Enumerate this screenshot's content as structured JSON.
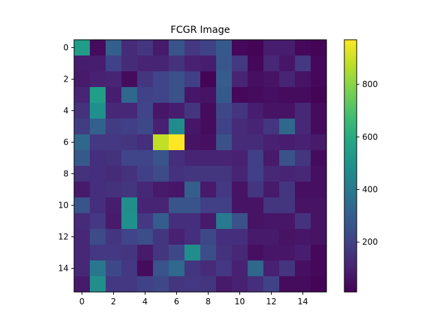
{
  "chart_data": {
    "type": "heatmap",
    "title": "FCGR Image",
    "xlabel": "",
    "ylabel": "",
    "rows": 16,
    "cols": 16,
    "x_ticks": [
      "0",
      "2",
      "4",
      "6",
      "8",
      "10",
      "12",
      "14"
    ],
    "x_tick_values": [
      0,
      2,
      4,
      6,
      8,
      10,
      12,
      14
    ],
    "y_ticks": [
      "0",
      "2",
      "4",
      "6",
      "8",
      "10",
      "12",
      "14"
    ],
    "y_tick_values": [
      0,
      2,
      4,
      6,
      8,
      10,
      12,
      14
    ],
    "colorbar": {
      "colormap": "viridis",
      "vmin": 10,
      "vmax": 970,
      "ticks": [
        "200",
        "400",
        "600",
        "800"
      ],
      "tick_values": [
        200,
        400,
        600,
        800
      ]
    },
    "values": [
      [
        540,
        40,
        300,
        130,
        160,
        80,
        260,
        170,
        200,
        280,
        30,
        20,
        90,
        90,
        30,
        20
      ],
      [
        90,
        90,
        200,
        130,
        110,
        110,
        150,
        100,
        90,
        270,
        170,
        30,
        120,
        70,
        170,
        30
      ],
      [
        80,
        100,
        110,
        40,
        160,
        210,
        250,
        190,
        20,
        290,
        110,
        50,
        60,
        110,
        60,
        30
      ],
      [
        110,
        550,
        90,
        330,
        200,
        210,
        250,
        70,
        60,
        280,
        30,
        40,
        50,
        40,
        40,
        20
      ],
      [
        150,
        490,
        120,
        120,
        210,
        70,
        90,
        160,
        40,
        220,
        160,
        90,
        60,
        60,
        120,
        40
      ],
      [
        180,
        310,
        180,
        190,
        220,
        100,
        470,
        70,
        40,
        200,
        130,
        110,
        160,
        330,
        120,
        40
      ],
      [
        330,
        170,
        170,
        160,
        140,
        880,
        970,
        60,
        50,
        250,
        130,
        130,
        100,
        90,
        100,
        80
      ],
      [
        280,
        140,
        150,
        210,
        210,
        260,
        140,
        110,
        110,
        110,
        100,
        190,
        80,
        250,
        160,
        40
      ],
      [
        150,
        140,
        130,
        150,
        190,
        230,
        150,
        160,
        160,
        160,
        110,
        190,
        120,
        110,
        120,
        50
      ],
      [
        80,
        140,
        150,
        160,
        120,
        80,
        70,
        300,
        80,
        170,
        60,
        160,
        80,
        160,
        50,
        50
      ],
      [
        260,
        140,
        90,
        480,
        110,
        110,
        260,
        260,
        190,
        190,
        60,
        60,
        160,
        160,
        60,
        60
      ],
      [
        130,
        170,
        80,
        490,
        170,
        290,
        140,
        140,
        80,
        400,
        250,
        60,
        70,
        70,
        150,
        60
      ],
      [
        120,
        230,
        160,
        210,
        240,
        160,
        100,
        140,
        220,
        140,
        140,
        80,
        80,
        60,
        70,
        60
      ],
      [
        120,
        170,
        170,
        160,
        80,
        160,
        220,
        480,
        240,
        150,
        120,
        50,
        70,
        70,
        90,
        30
      ],
      [
        120,
        390,
        220,
        170,
        40,
        260,
        340,
        160,
        130,
        170,
        100,
        330,
        100,
        160,
        50,
        30
      ],
      [
        80,
        480,
        170,
        170,
        200,
        220,
        160,
        170,
        160,
        80,
        100,
        140,
        200,
        40,
        40,
        20
      ]
    ]
  }
}
